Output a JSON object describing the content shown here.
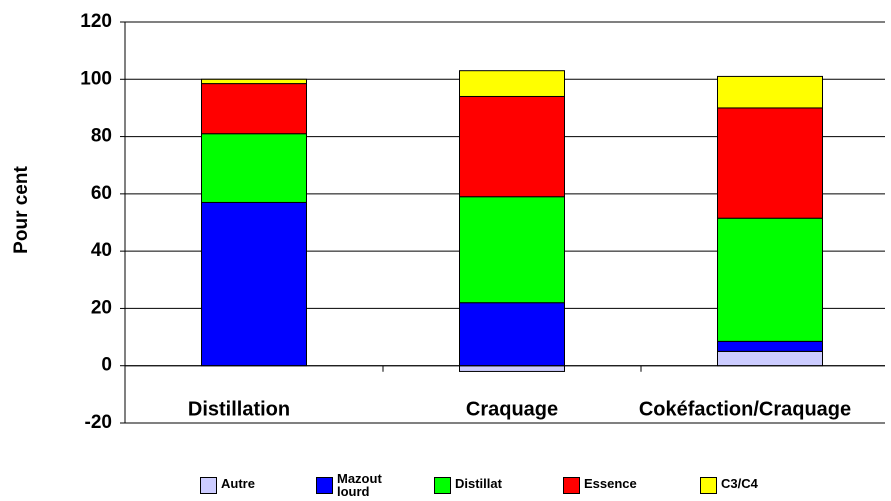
{
  "chart_data": {
    "type": "stacked_bar",
    "y_label": "Pour cent",
    "categories": [
      "Distillation",
      "Craquage",
      "Cokéfaction/Craquage"
    ],
    "series": [
      {
        "name": "Autre",
        "color": "#ccccff",
        "values": [
          0,
          -2,
          5
        ]
      },
      {
        "name": "Mazout lourd",
        "color": "#0000ff",
        "values": [
          57,
          22,
          3.5
        ]
      },
      {
        "name": "Distillat",
        "color": "#00ff00",
        "values": [
          24,
          37,
          43
        ]
      },
      {
        "name": "Essence",
        "color": "#ff0000",
        "values": [
          17.5,
          35,
          38.5
        ]
      },
      {
        "name": "C3/C4",
        "color": "#ffff00",
        "values": [
          1.5,
          9,
          11
        ]
      }
    ],
    "ylim": [
      -20,
      120
    ],
    "yticks": [
      -20,
      0,
      20,
      40,
      60,
      80,
      100,
      120
    ],
    "grid": true
  }
}
